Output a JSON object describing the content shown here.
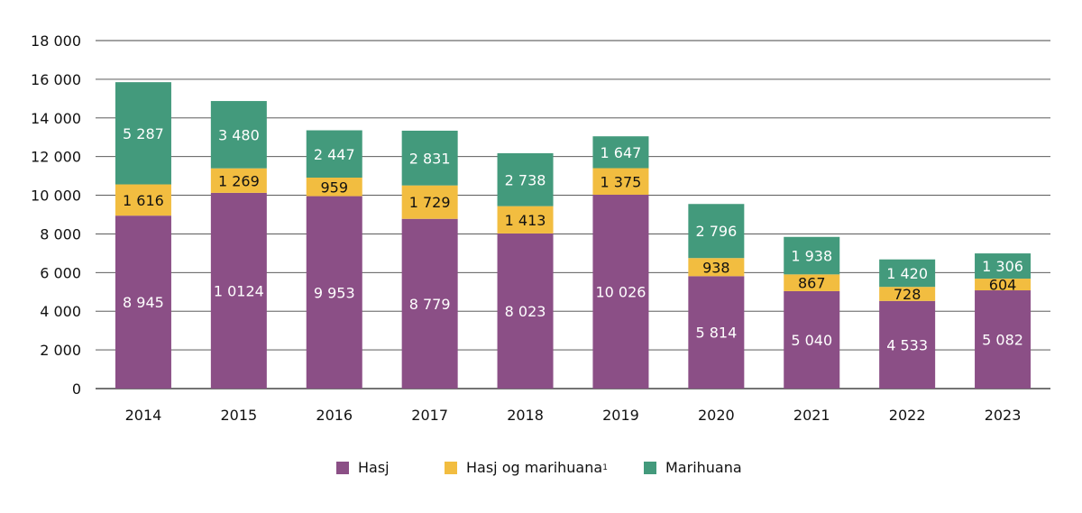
{
  "chart_data": {
    "type": "bar",
    "stacked": true,
    "categories": [
      "2014",
      "2015",
      "2016",
      "2017",
      "2018",
      "2019",
      "2020",
      "2021",
      "2022",
      "2023"
    ],
    "ylim": [
      0,
      18000
    ],
    "yticks": [
      0,
      2000,
      4000,
      6000,
      8000,
      10000,
      12000,
      14000,
      16000,
      18000
    ],
    "ytick_labels": [
      "0",
      "2 000",
      "4 000",
      "6 000",
      "8 000",
      "10 000",
      "12 000",
      "14 000",
      "16 000",
      "18 000"
    ],
    "grid": true,
    "legend_position": "bottom",
    "series": [
      {
        "name": "Hasj",
        "color": "#8b4f86",
        "values": [
          8945,
          10124,
          9953,
          8779,
          8023,
          10026,
          5814,
          5040,
          4533,
          5082
        ],
        "labels": [
          "8 945",
          "1 0124",
          "9 953",
          "8 779",
          "8 023",
          "10 026",
          "5 814",
          "5 040",
          "4 533",
          "5 082"
        ]
      },
      {
        "name": "Hasj og marihuana",
        "superscript": "1",
        "color": "#f2bd40",
        "values": [
          1616,
          1269,
          959,
          1729,
          1413,
          1375,
          938,
          867,
          728,
          604
        ],
        "labels": [
          "1 616",
          "1 269",
          "959",
          "1 729",
          "1 413",
          "1 375",
          "938",
          "867",
          "728",
          "604"
        ]
      },
      {
        "name": "Marihuana",
        "color": "#439a7c",
        "values": [
          5287,
          3480,
          2447,
          2831,
          2738,
          1647,
          2796,
          1938,
          1420,
          1306
        ],
        "labels": [
          "5 287",
          "3 480",
          "2 447",
          "2 831",
          "2 738",
          "1 647",
          "2 796",
          "1 938",
          "1 420",
          "1 306"
        ]
      }
    ]
  }
}
